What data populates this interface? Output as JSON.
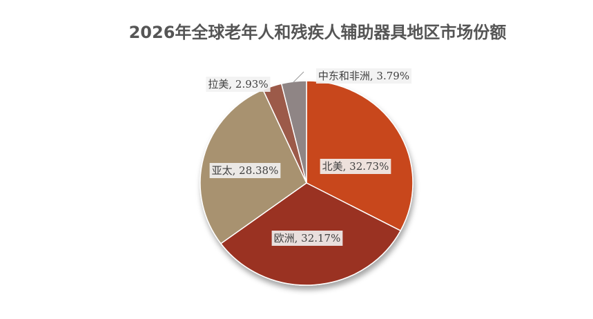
{
  "chart_data": {
    "type": "pie",
    "title": "2026年全球老年人和残疾人辅助器具地区市场份额",
    "values": [
      32.73,
      32.17,
      28.38,
      2.93,
      3.79
    ],
    "value_labels": [
      "北美, 32.73%",
      "欧洲, 32.17%",
      "亚太, 28.38%",
      "拉美, 2.93%",
      "中东和非洲, 3.79%"
    ],
    "colors": [
      "#c8461e",
      "#9a3322",
      "#a89270",
      "#9c5a4a",
      "#8f8585"
    ]
  }
}
